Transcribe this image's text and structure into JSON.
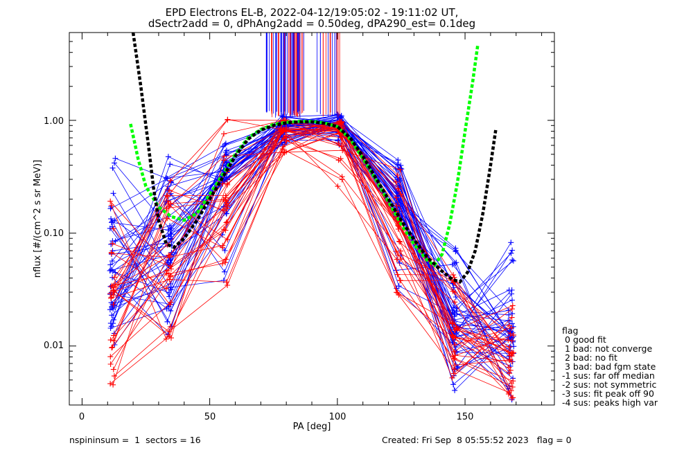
{
  "chart_data": {
    "type": "line",
    "title": "EPD Electrons EL-B, 2022-04-12/19:05:02 - 19:11:02 UT,",
    "subtitle": "dSectr2add = 0, dPhAng2add = 0.50deg, dPA290_est=    0.1deg",
    "xlabel": "PA [deg]",
    "ylabel": "nflux [#/(cm^2 s sr MeV)]",
    "xlim": [
      -5,
      185
    ],
    "ylim": [
      0.003,
      6
    ],
    "yscale": "log",
    "x_ticks": [
      "0",
      "50",
      "100",
      "150"
    ],
    "y_ticks": [
      "0.01",
      "0.10",
      "1.00"
    ],
    "grid": false,
    "pa_bins": [
      12,
      34,
      56,
      79,
      101,
      124,
      146,
      168
    ],
    "series": [
      {
        "color": "#0000ff",
        "n_traces": 45,
        "median_values": [
          0.045,
          0.06,
          0.3,
          0.88,
          0.92,
          0.2,
          0.02,
          0.012
        ],
        "spread_low": [
          0.009,
          0.012,
          0.034,
          0.6,
          0.6,
          0.03,
          0.004,
          0.003
        ],
        "spread_high": [
          0.5,
          0.5,
          0.65,
          1.15,
          1.15,
          0.5,
          0.08,
          0.085
        ]
      },
      {
        "color": "#ff0000",
        "n_traces": 30,
        "median_values": [
          0.03,
          0.045,
          0.2,
          0.8,
          0.8,
          0.12,
          0.012,
          0.008
        ],
        "spread_low": [
          0.0043,
          0.0078,
          0.028,
          0.5,
          0.24,
          0.028,
          0.005,
          0.0032
        ],
        "spread_high": [
          0.33,
          0.3,
          1.2,
          1.1,
          1.0,
          0.45,
          0.05,
          0.026
        ]
      }
    ],
    "fit_curves": [
      {
        "color": "#00ff00",
        "points": [
          [
            19,
            0.93
          ],
          [
            22,
            0.45
          ],
          [
            25,
            0.26
          ],
          [
            30,
            0.17
          ],
          [
            35,
            0.14
          ],
          [
            40,
            0.13
          ],
          [
            45,
            0.15
          ],
          [
            50,
            0.22
          ],
          [
            55,
            0.33
          ],
          [
            60,
            0.5
          ],
          [
            65,
            0.7
          ],
          [
            70,
            0.83
          ],
          [
            75,
            0.92
          ],
          [
            80,
            0.96
          ],
          [
            85,
            0.98
          ],
          [
            90,
            0.98
          ],
          [
            95,
            0.95
          ],
          [
            100,
            0.88
          ],
          [
            105,
            0.68
          ],
          [
            110,
            0.46
          ],
          [
            115,
            0.3
          ],
          [
            120,
            0.19
          ],
          [
            125,
            0.12
          ],
          [
            130,
            0.08
          ],
          [
            135,
            0.058
          ],
          [
            138,
            0.052
          ],
          [
            141,
            0.065
          ],
          [
            144,
            0.12
          ],
          [
            147,
            0.28
          ],
          [
            150,
            0.8
          ],
          [
            153,
            2.2
          ],
          [
            155,
            4.7
          ]
        ]
      },
      {
        "color": "#000000",
        "points": [
          [
            20,
            6.0
          ],
          [
            23,
            2.0
          ],
          [
            26,
            0.6
          ],
          [
            28,
            0.25
          ],
          [
            30,
            0.13
          ],
          [
            33,
            0.08
          ],
          [
            36,
            0.075
          ],
          [
            40,
            0.09
          ],
          [
            45,
            0.13
          ],
          [
            50,
            0.2
          ],
          [
            55,
            0.31
          ],
          [
            60,
            0.48
          ],
          [
            65,
            0.68
          ],
          [
            70,
            0.82
          ],
          [
            75,
            0.9
          ],
          [
            80,
            0.95
          ],
          [
            85,
            0.97
          ],
          [
            90,
            0.97
          ],
          [
            95,
            0.94
          ],
          [
            100,
            0.88
          ],
          [
            105,
            0.7
          ],
          [
            110,
            0.48
          ],
          [
            115,
            0.31
          ],
          [
            120,
            0.2
          ],
          [
            125,
            0.13
          ],
          [
            130,
            0.088
          ],
          [
            135,
            0.062
          ],
          [
            140,
            0.048
          ],
          [
            145,
            0.039
          ],
          [
            148,
            0.037
          ],
          [
            151,
            0.045
          ],
          [
            154,
            0.07
          ],
          [
            157,
            0.15
          ],
          [
            160,
            0.4
          ],
          [
            162,
            0.82
          ]
        ]
      }
    ],
    "spike_x_range": [
      69,
      101
    ]
  },
  "legend": {
    "title": "flag",
    "items": [
      " 0 good fit",
      " 1 bad: not converge",
      " 2 bad: no fit",
      " 3 bad: bad fgm state",
      "-1 sus: far off median",
      "-2 sus: not symmetric",
      "-3 sus: fit peak off 90",
      "-4 sus: peaks high var"
    ]
  },
  "footer": {
    "left": "nspininsum =  1  sectors = 16",
    "right": "Created: Fri Sep  8 05:55:52 2023   flag = 0"
  }
}
